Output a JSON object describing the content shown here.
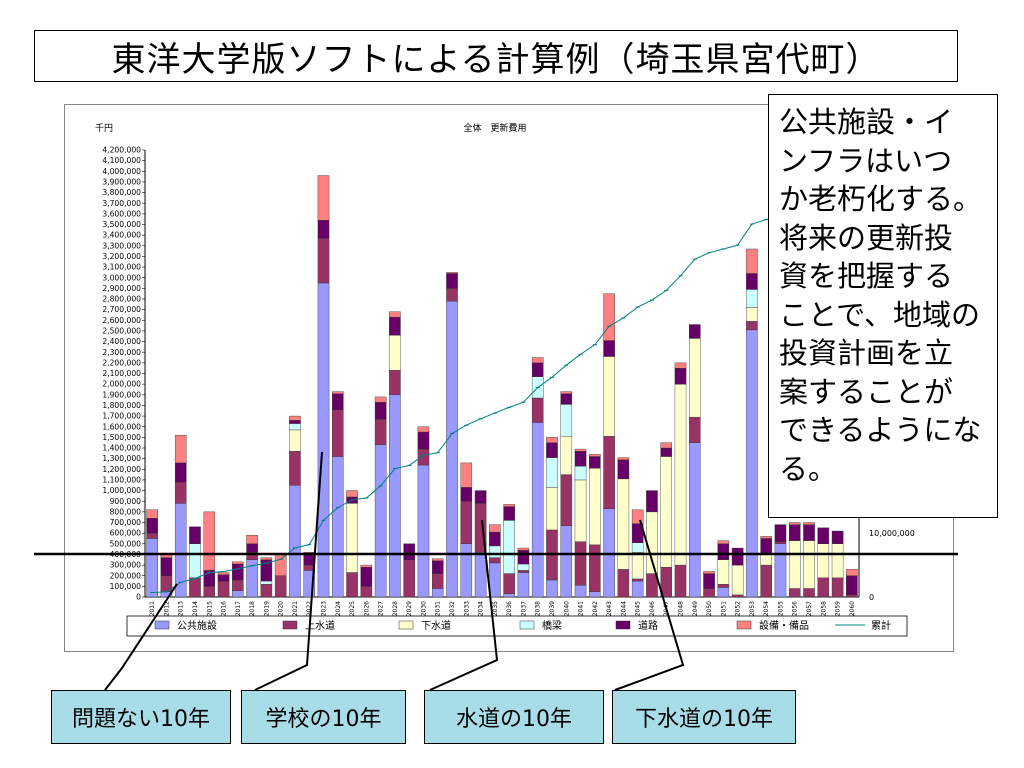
{
  "title": "東洋大学版ソフトによる計算例（埼玉県宮代町）",
  "note": {
    "lines": [
      "公共施設・イ",
      "ンフラはいつ",
      "か老朽化する。",
      "将来の更新投",
      "資を把握する",
      "ことで、地域の",
      "投資計画を立",
      "案することが",
      "できるようにな",
      "る。"
    ]
  },
  "tags": [
    "問題ない10年",
    "学校の10年",
    "水道の10年",
    "下水道の10年"
  ],
  "colors": {
    "public": "#9999ff",
    "water": "#993366",
    "sewer": "#ffffcc",
    "bridge": "#ccffff",
    "road": "#660066",
    "equip": "#ff8080",
    "cum": "#008080",
    "tag_bg": "#a8dde8"
  },
  "chart_data": {
    "type": "bar",
    "stacked": true,
    "title": "全体　更新費用",
    "ylabel": "千円",
    "ylim": [
      0,
      4200000
    ],
    "ytick_step": 100000,
    "y2_ticks": [
      "10,000,000",
      "0"
    ],
    "legend_position": "bottom",
    "categories": [
      "2011",
      "2012",
      "2013",
      "2014",
      "2015",
      "2016",
      "2017",
      "2018",
      "2019",
      "2020",
      "2021",
      "2022",
      "2023",
      "2024",
      "2025",
      "2026",
      "2027",
      "2028",
      "2029",
      "2030",
      "2031",
      "2032",
      "2033",
      "2034",
      "2035",
      "2036",
      "2037",
      "2038",
      "2039",
      "2040",
      "2041",
      "2042",
      "2043",
      "2044",
      "2045",
      "2046",
      "2047",
      "2048",
      "2049",
      "2050",
      "2051",
      "2052",
      "2053",
      "2054",
      "2055",
      "2056",
      "2057",
      "2058",
      "2059",
      "2060"
    ],
    "series": [
      {
        "name": "公共施設",
        "key": "public",
        "values": [
          550000,
          50000,
          880000,
          0,
          0,
          0,
          60000,
          350000,
          0,
          0,
          1050000,
          250000,
          2950000,
          1320000,
          0,
          0,
          1430000,
          1900000,
          0,
          1240000,
          80000,
          2780000,
          500000,
          420000,
          320000,
          30000,
          230000,
          1640000,
          160000,
          670000,
          110000,
          50000,
          830000,
          0,
          150000,
          0,
          0,
          0,
          1450000,
          0,
          90000,
          0,
          2510000,
          0,
          500000,
          0,
          0,
          0,
          0,
          0
        ]
      },
      {
        "name": "上水道",
        "key": "water",
        "values": [
          50000,
          150000,
          200000,
          180000,
          100000,
          150000,
          100000,
          70000,
          120000,
          200000,
          320000,
          50000,
          420000,
          440000,
          230000,
          100000,
          240000,
          230000,
          350000,
          150000,
          140000,
          120000,
          400000,
          460000,
          50000,
          190000,
          20000,
          230000,
          470000,
          480000,
          410000,
          440000,
          680000,
          260000,
          20000,
          220000,
          280000,
          300000,
          240000,
          80000,
          30000,
          20000,
          80000,
          300000,
          20000,
          80000,
          80000,
          180000,
          180000,
          20000
        ]
      },
      {
        "name": "下水道",
        "key": "sewer",
        "values": [
          0,
          0,
          0,
          0,
          0,
          0,
          0,
          0,
          0,
          0,
          200000,
          0,
          0,
          0,
          650000,
          0,
          0,
          330000,
          0,
          0,
          0,
          0,
          0,
          0,
          0,
          0,
          0,
          0,
          400000,
          360000,
          580000,
          720000,
          750000,
          850000,
          250000,
          580000,
          1040000,
          1700000,
          740000,
          0,
          230000,
          280000,
          130000,
          100000,
          0,
          450000,
          450000,
          320000,
          320000,
          0
        ]
      },
      {
        "name": "橋梁",
        "key": "bridge",
        "values": [
          0,
          0,
          0,
          320000,
          0,
          0,
          0,
          0,
          30000,
          0,
          60000,
          0,
          0,
          0,
          0,
          0,
          0,
          0,
          0,
          0,
          0,
          0,
          0,
          0,
          110000,
          500000,
          60000,
          200000,
          280000,
          300000,
          130000,
          0,
          0,
          0,
          90000,
          0,
          0,
          0,
          0,
          0,
          0,
          0,
          170000,
          0,
          0,
          0,
          0,
          0,
          0,
          0
        ]
      },
      {
        "name": "道路",
        "key": "road",
        "values": [
          140000,
          170000,
          180000,
          160000,
          150000,
          60000,
          150000,
          80000,
          200000,
          0,
          30000,
          100000,
          170000,
          150000,
          60000,
          180000,
          160000,
          170000,
          150000,
          160000,
          120000,
          140000,
          130000,
          120000,
          130000,
          130000,
          130000,
          130000,
          140000,
          100000,
          140000,
          110000,
          150000,
          180000,
          180000,
          200000,
          80000,
          150000,
          130000,
          140000,
          150000,
          160000,
          150000,
          150000,
          160000,
          150000,
          150000,
          150000,
          120000,
          180000
        ]
      },
      {
        "name": "設備・備品",
        "key": "equip",
        "values": [
          80000,
          30000,
          260000,
          0,
          550000,
          20000,
          20000,
          80000,
          20000,
          210000,
          40000,
          20000,
          420000,
          20000,
          60000,
          20000,
          50000,
          50000,
          0,
          50000,
          20000,
          10000,
          230000,
          0,
          70000,
          20000,
          20000,
          50000,
          50000,
          20000,
          20000,
          20000,
          440000,
          20000,
          130000,
          0,
          50000,
          50000,
          0,
          20000,
          30000,
          0,
          230000,
          20000,
          0,
          20000,
          20000,
          0,
          0,
          60000
        ]
      }
    ],
    "cumulative": {
      "name": "累計",
      "values": [
        700000,
        800000,
        2300000,
        2900000,
        3800000,
        4000000,
        4400000,
        4900000,
        5300000,
        5900000,
        7700000,
        8200000,
        12000000,
        14000000,
        15200000,
        15500000,
        17400000,
        20100000,
        20600000,
        22200000,
        22600000,
        25600000,
        26900000,
        27900000,
        28800000,
        29700000,
        30500000,
        32800000,
        34400000,
        36300000,
        38000000,
        39500000,
        42400000,
        43700000,
        45400000,
        46500000,
        48000000,
        50300000,
        52900000,
        53900000,
        54500000,
        55100000,
        58400000,
        59100000,
        59800000,
        60600000,
        61200000,
        61600000,
        62000000,
        62400000
      ]
    }
  }
}
